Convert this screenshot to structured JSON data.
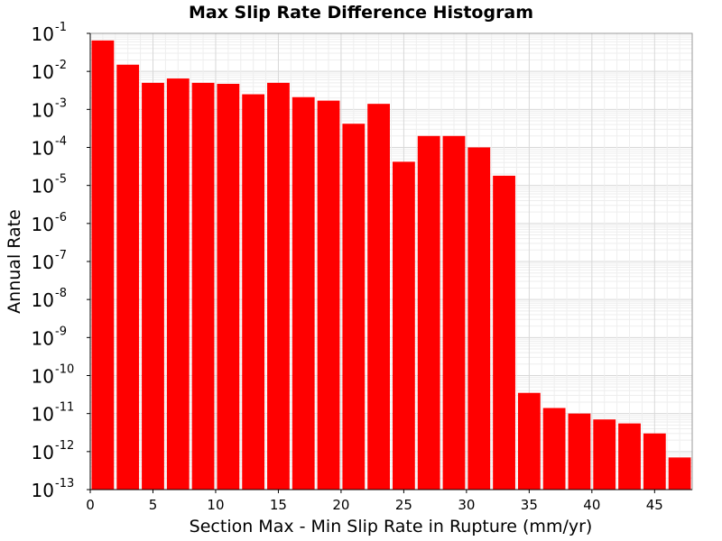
{
  "chart_data": {
    "type": "bar",
    "title": "Max Slip Rate Difference Histogram",
    "xlabel": "Section Max - Min Slip Rate in Rupture (mm/yr)",
    "ylabel": "Annual Rate",
    "yscale": "log",
    "xlim": [
      0,
      48
    ],
    "ylim": [
      1e-13,
      0.1
    ],
    "bin_width": 2,
    "x_ticks": [
      "0",
      "5",
      "10",
      "15",
      "20",
      "25",
      "30",
      "35",
      "40",
      "45"
    ],
    "y_ticks": [
      {
        "base": "10",
        "exp": "-1"
      },
      {
        "base": "10",
        "exp": "-2"
      },
      {
        "base": "10",
        "exp": "-3"
      },
      {
        "base": "10",
        "exp": "-4"
      },
      {
        "base": "10",
        "exp": "-5"
      },
      {
        "base": "10",
        "exp": "-6"
      },
      {
        "base": "10",
        "exp": "-7"
      },
      {
        "base": "10",
        "exp": "-8"
      },
      {
        "base": "10",
        "exp": "-9"
      },
      {
        "base": "10",
        "exp": "-10"
      },
      {
        "base": "10",
        "exp": "-11"
      },
      {
        "base": "10",
        "exp": "-12"
      },
      {
        "base": "10",
        "exp": "-13"
      }
    ],
    "bin_starts": [
      0,
      2,
      4,
      6,
      8,
      10,
      12,
      14,
      16,
      18,
      20,
      22,
      24,
      26,
      28,
      30,
      32,
      34,
      36,
      38,
      40,
      42,
      44,
      46
    ],
    "values": [
      0.065,
      0.015,
      0.005,
      0.0065,
      0.005,
      0.0047,
      0.0025,
      0.005,
      0.0021,
      0.0017,
      0.00042,
      0.0014,
      4.2e-05,
      0.0002,
      0.0002,
      0.0001,
      1.8e-05,
      3.5e-11,
      1.4e-11,
      1e-11,
      7e-12,
      5.5e-12,
      3e-12,
      7e-13
    ],
    "bar_color": "#ff0000",
    "grid": true,
    "legend": "none"
  }
}
